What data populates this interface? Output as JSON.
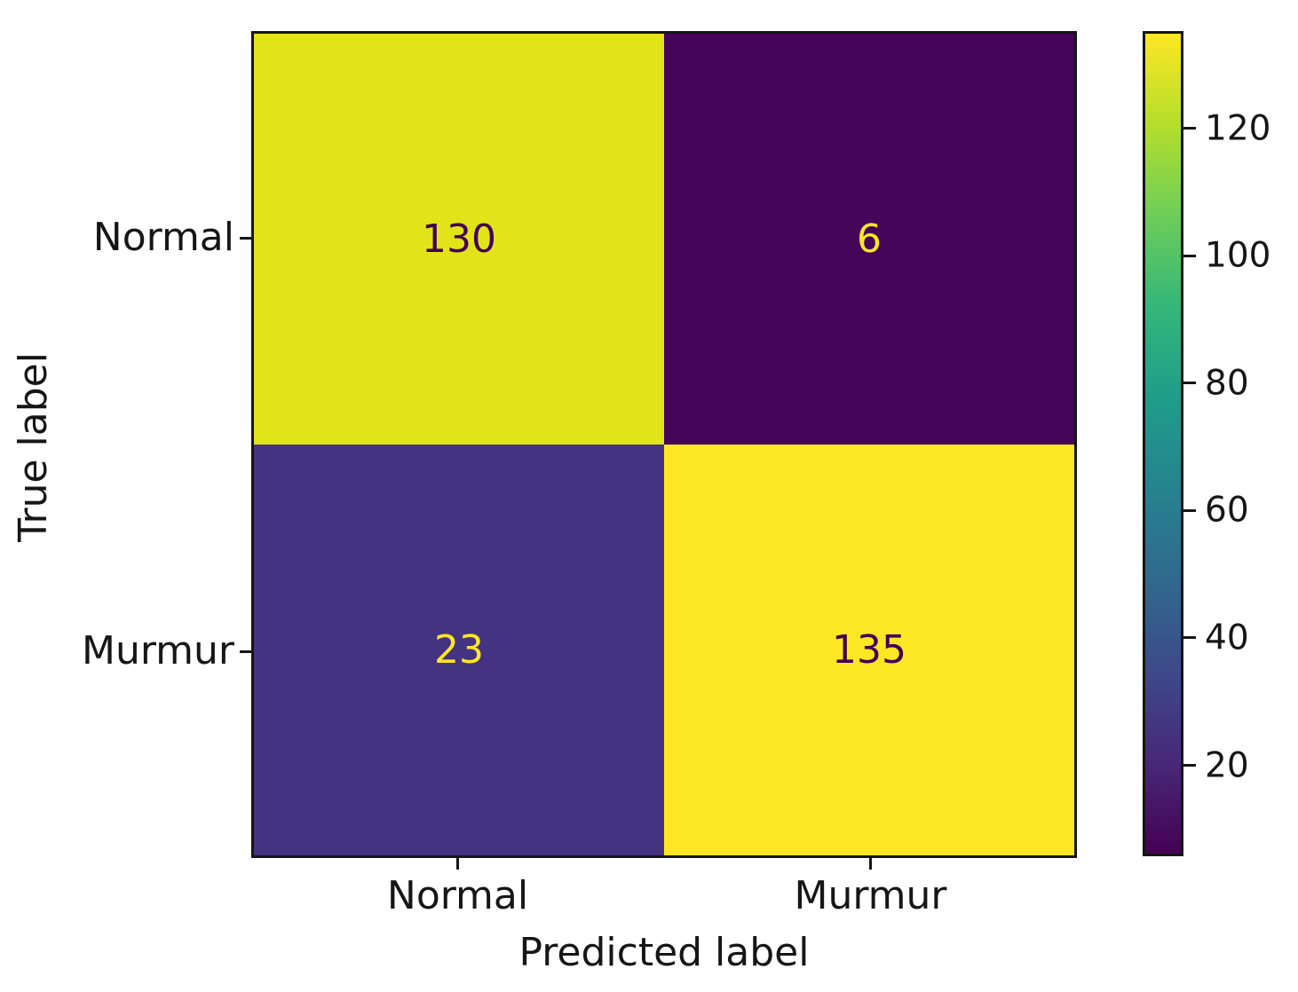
{
  "chart_data": {
    "type": "heatmap",
    "subtype": "confusion-matrix",
    "title": "",
    "xlabel": "Predicted label",
    "ylabel": "True label",
    "x_categories": [
      "Normal",
      "Murmur"
    ],
    "y_categories": [
      "Normal",
      "Murmur"
    ],
    "matrix": [
      [
        130,
        6
      ],
      [
        23,
        135
      ]
    ],
    "vmin": 6,
    "vmax": 135,
    "colormap": "viridis",
    "colorbar_ticks": [
      20,
      40,
      60,
      80,
      100,
      120
    ],
    "colorbar_position": "right",
    "grid": false,
    "cell_colors": [
      [
        "#e2e41a",
        "#450559"
      ],
      [
        "#443380",
        "#fde725"
      ]
    ],
    "cell_text_colors": [
      [
        "#440154",
        "#fde725"
      ],
      [
        "#fde725",
        "#440154"
      ]
    ]
  },
  "colors": {
    "background": "#ffffff",
    "spine": "#161616",
    "tick": "#161616",
    "text": "#161616"
  }
}
